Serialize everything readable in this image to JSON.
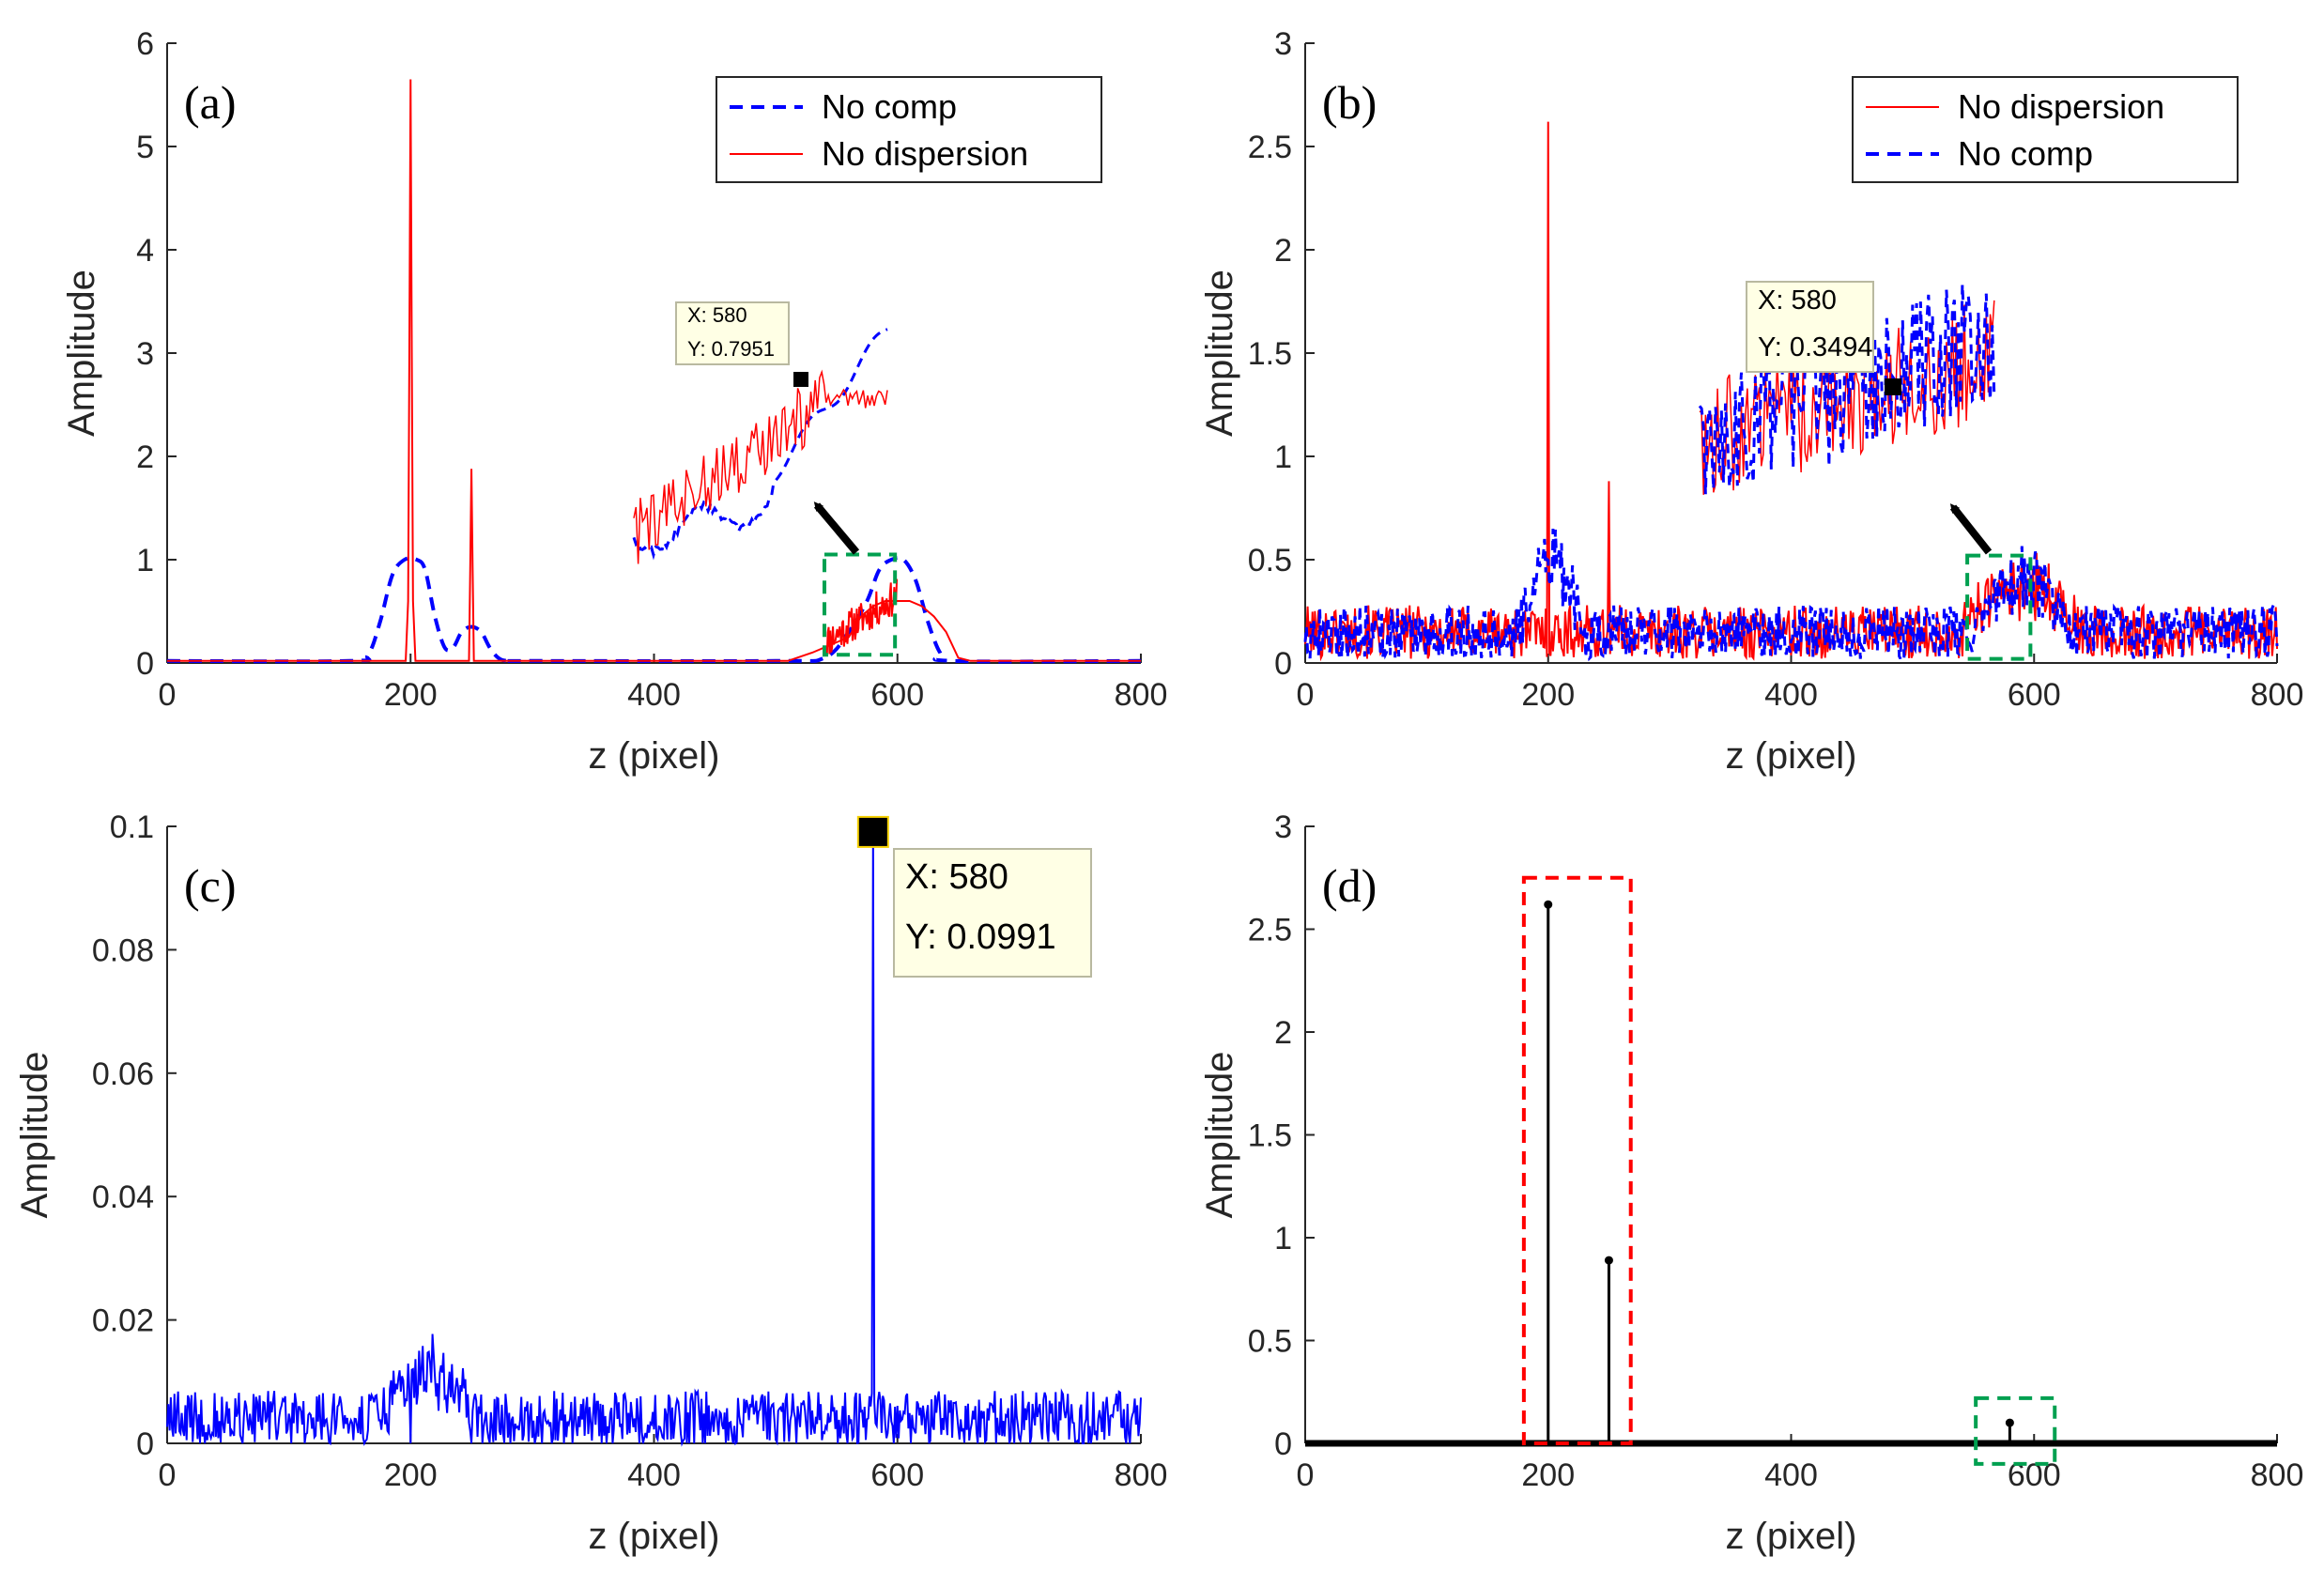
{
  "colors": {
    "no_comp": "#0000ff",
    "no_dispersion": "#ff0000",
    "signal": "#0000ff",
    "stem": "#000000",
    "zoom_box": "#00a050",
    "peak_box": "#ff0000",
    "tooltip_bg": "#ffffe5"
  },
  "chart_data": [
    {
      "id": "a",
      "panel_label": "(a)",
      "type": "line",
      "xlabel": "z (pixel)",
      "ylabel": "Amplitude",
      "xlim": [
        0,
        800
      ],
      "ylim": [
        0,
        6
      ],
      "xticks": [
        0,
        200,
        400,
        600,
        800
      ],
      "yticks": [
        0,
        1,
        2,
        3,
        4,
        5,
        6
      ],
      "ytick_labels": [
        "0",
        "1",
        "2",
        "3",
        "4",
        "5",
        "6"
      ],
      "legend": [
        "No comp",
        "No dispersion"
      ],
      "legend_position": "top-right",
      "series": [
        {
          "name": "No comp",
          "style": "dashed",
          "shape": "smooth",
          "x": [
            0,
            150,
            165,
            175,
            185,
            195,
            205,
            212,
            220,
            228,
            235,
            242,
            250,
            258,
            265,
            272,
            280,
            300,
            500,
            540,
            560,
            575,
            585,
            595,
            605,
            615,
            625,
            635,
            645,
            800
          ],
          "y": [
            0.02,
            0.02,
            0.08,
            0.4,
            0.85,
            1.0,
            1.0,
            0.9,
            0.45,
            0.15,
            0.15,
            0.3,
            0.35,
            0.3,
            0.15,
            0.05,
            0.02,
            0.02,
            0.02,
            0.05,
            0.3,
            0.6,
            0.9,
            1.0,
            1.0,
            0.8,
            0.4,
            0.1,
            0.02,
            0.02
          ]
        },
        {
          "name": "No dispersion",
          "style": "solid",
          "shape": "sharp",
          "x": [
            0,
            196,
            198,
            199,
            200,
            201,
            202,
            204,
            248,
            249,
            250,
            251,
            252,
            510,
            530,
            540,
            550,
            560,
            570,
            580,
            590,
            600,
            610,
            620,
            630,
            640,
            650,
            660,
            800
          ],
          "y": [
            0.02,
            0.02,
            0.6,
            3.0,
            5.65,
            3.0,
            0.6,
            0.02,
            0.02,
            0.9,
            1.88,
            0.9,
            0.02,
            0.02,
            0.1,
            0.15,
            0.2,
            0.25,
            0.45,
            0.55,
            0.6,
            0.6,
            0.6,
            0.55,
            0.45,
            0.3,
            0.05,
            0.02,
            0.02
          ]
        }
      ],
      "zoom_box": {
        "x": [
          540,
          598
        ],
        "y": [
          0.08,
          1.05
        ]
      },
      "inset_x_range": [
        540,
        598
      ],
      "datatip": {
        "x_label": "X: 580",
        "y_label": "Y: 0.7951"
      }
    },
    {
      "id": "b",
      "panel_label": "(b)",
      "type": "line",
      "xlabel": "z (pixel)",
      "ylabel": "Amplitude",
      "xlim": [
        0,
        800
      ],
      "ylim": [
        0,
        3
      ],
      "xticks": [
        0,
        200,
        400,
        600,
        800
      ],
      "yticks": [
        0,
        0.5,
        1,
        1.5,
        2,
        2.5,
        3
      ],
      "ytick_labels": [
        "0",
        "0.5",
        "1",
        "1.5",
        "2",
        "2.5",
        "3"
      ],
      "legend": [
        "No dispersion",
        "No comp"
      ],
      "legend_position": "top-right",
      "series": [
        {
          "name": "No dispersion",
          "style": "solid",
          "noise_base": 0.15,
          "noise_amp": 0.13,
          "peaks": [
            {
              "x": 200,
              "y": 2.62
            },
            {
              "x": 250,
              "y": 0.88
            }
          ],
          "bumps": [
            {
              "x0": 540,
              "x1": 640,
              "y": 0.22
            }
          ]
        },
        {
          "name": "No comp",
          "style": "dashed",
          "noise_base": 0.15,
          "noise_amp": 0.13,
          "bumps": [
            {
              "x0": 175,
              "x1": 230,
              "y": 0.35
            },
            {
              "x0": 550,
              "x1": 630,
              "y": 0.25
            }
          ]
        }
      ],
      "zoom_box": {
        "x": [
          545,
          597
        ],
        "y": [
          0.02,
          0.52
        ]
      },
      "inset_x_range": [
        545,
        597
      ],
      "datatip": {
        "x_label": "X: 580",
        "y_label": "Y: 0.3494"
      }
    },
    {
      "id": "c",
      "panel_label": "(c)",
      "type": "line",
      "xlabel": "z (pixel)",
      "ylabel": "Amplitude",
      "xlim": [
        0,
        800
      ],
      "ylim": [
        0,
        0.1
      ],
      "xticks": [
        0,
        200,
        400,
        600,
        800
      ],
      "yticks": [
        0,
        0.02,
        0.04,
        0.06,
        0.08,
        0.1
      ],
      "ytick_labels": [
        "0",
        "0.02",
        "0.04",
        "0.06",
        "0.08",
        "0.1"
      ],
      "series": [
        {
          "name": "",
          "style": "solid",
          "noise_base": 0.004,
          "noise_amp": 0.0045,
          "bumps": [
            {
              "x0": 175,
              "x1": 255,
              "y": 0.008
            }
          ],
          "dips": [
            200,
            250
          ],
          "peaks": [
            {
              "x": 580,
              "y": 0.0991
            }
          ]
        }
      ],
      "datatip": {
        "x": 580,
        "y": 0.0991,
        "x_label": "X: 580",
        "y_label": "Y: 0.0991"
      }
    },
    {
      "id": "d",
      "panel_label": "(d)",
      "type": "stem",
      "xlabel": "z (pixel)",
      "ylabel": "Amplitude",
      "xlim": [
        0,
        800
      ],
      "ylim": [
        0,
        3
      ],
      "xticks": [
        0,
        200,
        400,
        600,
        800
      ],
      "yticks": [
        0,
        0.5,
        1,
        1.5,
        2,
        2.5,
        3
      ],
      "ytick_labels": [
        "0",
        "0.5",
        "1",
        "1.5",
        "2",
        "2.5",
        "3"
      ],
      "stems": [
        {
          "x": 200,
          "y": 2.62
        },
        {
          "x": 250,
          "y": 0.89
        },
        {
          "x": 580,
          "y": 0.1
        }
      ],
      "boxes": [
        {
          "color": "peak_box",
          "x": [
            180,
            268
          ],
          "y": [
            0,
            2.75
          ]
        },
        {
          "color": "zoom_box",
          "x": [
            552,
            617
          ],
          "y": [
            -0.1,
            0.22
          ]
        }
      ]
    }
  ]
}
